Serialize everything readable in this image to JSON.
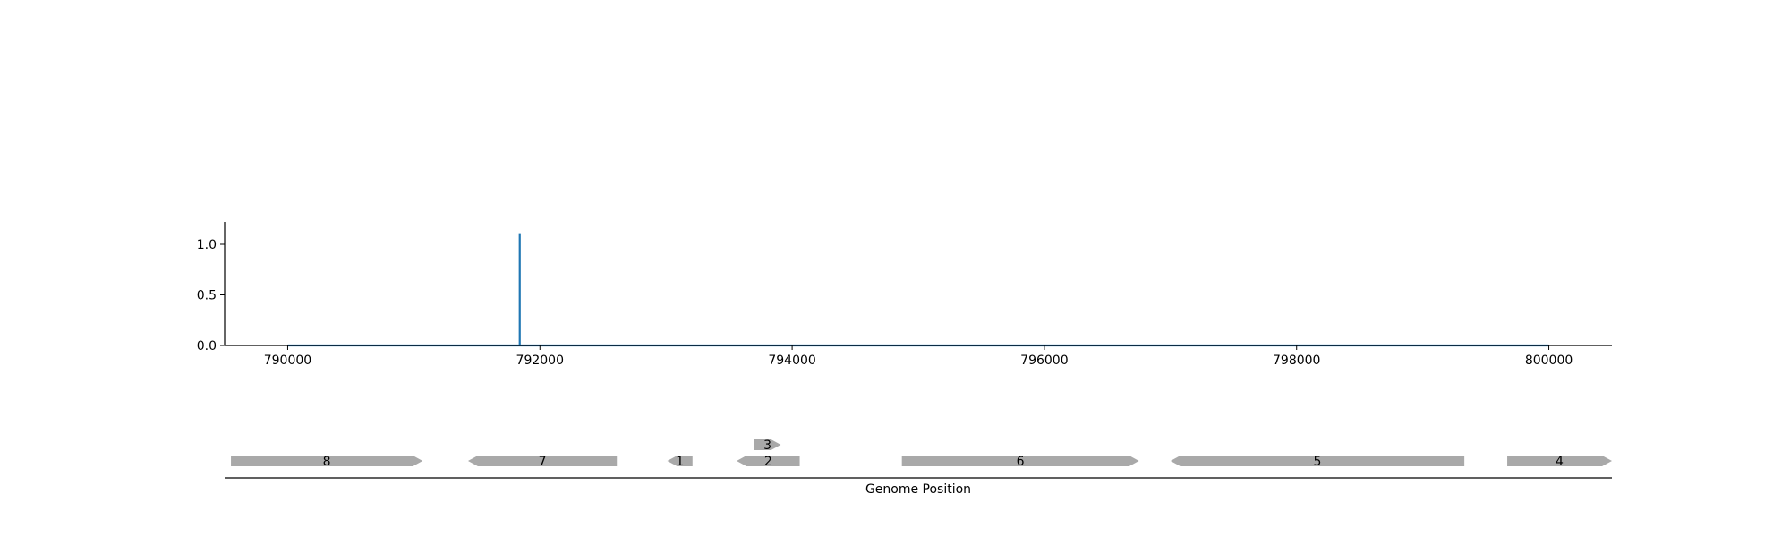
{
  "chart_data": [
    {
      "type": "line",
      "title": "",
      "xlabel": "",
      "ylabel": "",
      "xlim": [
        789500,
        800500
      ],
      "ylim": [
        0,
        1.22
      ],
      "x_ticks": [
        790000,
        792000,
        794000,
        796000,
        798000,
        800000
      ],
      "x_tick_labels": [
        "790000",
        "792000",
        "794000",
        "796000",
        "798000",
        "800000"
      ],
      "y_ticks": [
        0.0,
        0.5,
        1.0
      ],
      "y_tick_labels": [
        "0.0",
        "0.5",
        "1.0"
      ],
      "grid": false,
      "color": "#1f77b4",
      "series": [
        {
          "x": [
            790000,
            791840,
            791840,
            791840,
            791850,
            800000
          ],
          "y": [
            0,
            0,
            1.11,
            0,
            0,
            0
          ]
        }
      ]
    },
    {
      "type": "gene-track",
      "xlabel": "Genome Position",
      "xlim": [
        789500,
        800500
      ],
      "color": "#a9a9a9",
      "genes": [
        {
          "label": "8",
          "start": 789550,
          "end": 791070,
          "strand": "+",
          "row": 0
        },
        {
          "label": "7",
          "start": 791430,
          "end": 792610,
          "strand": "-",
          "row": 0
        },
        {
          "label": "1",
          "start": 793010,
          "end": 793210,
          "strand": "-",
          "row": 0
        },
        {
          "label": "2",
          "start": 793560,
          "end": 794060,
          "strand": "-",
          "row": 0
        },
        {
          "label": "3",
          "start": 793700,
          "end": 793910,
          "strand": "+",
          "row": 1
        },
        {
          "label": "6",
          "start": 794870,
          "end": 796750,
          "strand": "+",
          "row": 0
        },
        {
          "label": "5",
          "start": 797000,
          "end": 799330,
          "strand": "-",
          "row": 0
        },
        {
          "label": "4",
          "start": 799670,
          "end": 800500,
          "strand": "+",
          "row": 0
        }
      ]
    }
  ]
}
